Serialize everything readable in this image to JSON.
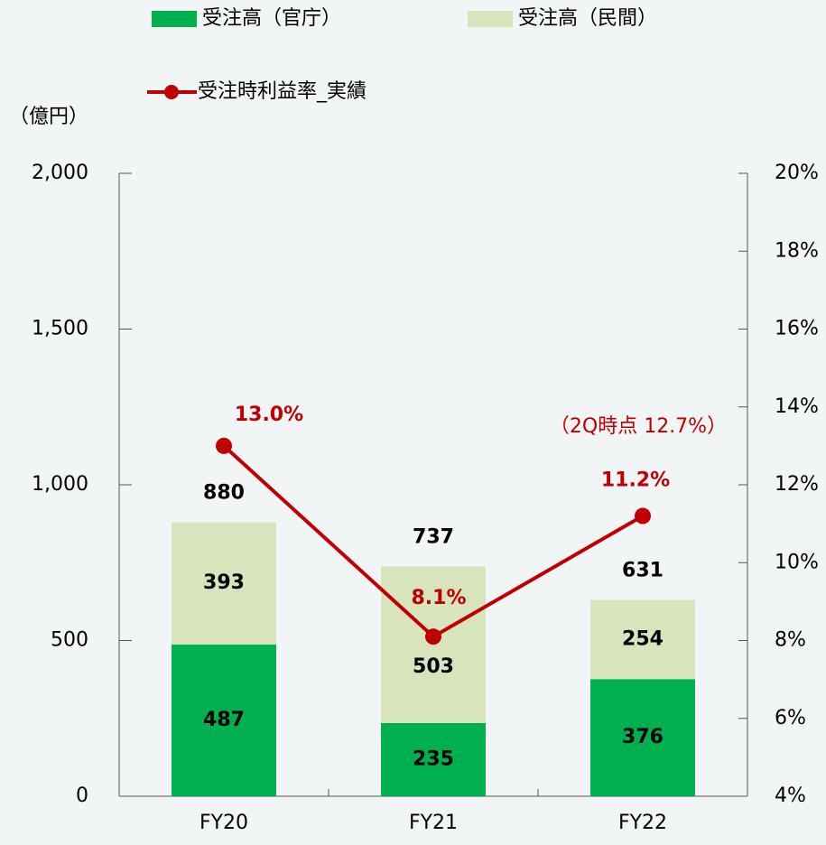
{
  "chart_data": {
    "type": "bar",
    "categories": [
      "FY20",
      "FY21",
      "FY22"
    ],
    "y_label": "（億円）",
    "series": [
      {
        "name": "受注高（官庁）",
        "color": "#00b04f",
        "type": "bar",
        "values": [
          487,
          235,
          376
        ]
      },
      {
        "name": "受注高（民間）",
        "color": "#d8e4bc",
        "type": "bar",
        "values": [
          393,
          503,
          254
        ]
      },
      {
        "name": "受注時利益率_実績",
        "color": "#c00000",
        "type": "line",
        "axis": "y2",
        "values": [
          13.0,
          8.1,
          11.2
        ],
        "value_labels": [
          "13.0%",
          "8.1%",
          "11.2%"
        ]
      }
    ],
    "totals": [
      880,
      737,
      631
    ],
    "annotation": "（2Q時点 12.7%）",
    "ylim": [
      0,
      2000
    ],
    "yticks": [
      0,
      500,
      {
        "value": 1000,
        "label": "1,000"
      },
      {
        "value": 1500,
        "label": "1,500"
      },
      {
        "value": 2000,
        "label": "2,000"
      }
    ],
    "y2lim": [
      4,
      20
    ],
    "y2ticks": [
      {
        "value": 4,
        "label": "4%"
      },
      {
        "value": 6,
        "label": "6%"
      },
      {
        "value": 8,
        "label": "8%"
      },
      {
        "value": 10,
        "label": "10%"
      },
      {
        "value": 12,
        "label": "12%"
      },
      {
        "value": 14,
        "label": "14%"
      },
      {
        "value": 16,
        "label": "16%"
      },
      {
        "value": 18,
        "label": "18%"
      },
      {
        "value": 20,
        "label": "20%"
      }
    ]
  }
}
